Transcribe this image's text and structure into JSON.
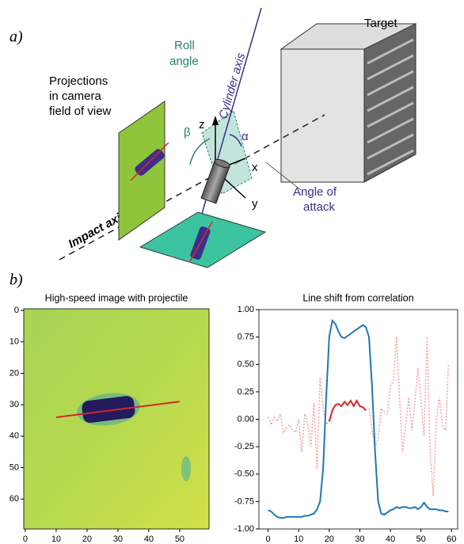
{
  "panels": {
    "a": "a)",
    "b": "b)"
  },
  "diagram": {
    "target": "Target",
    "roll_angle": [
      "Roll",
      "angle"
    ],
    "cylinder_axis": "Cylinder axis",
    "projections": [
      "Projections",
      "in camera",
      "field of view"
    ],
    "z": "z",
    "x": "x",
    "y": "y",
    "beta": "β",
    "alpha": "α",
    "angle_of_attack": [
      "Angle of",
      "attack"
    ],
    "impact_axis": "Impact axis"
  },
  "chart_data": [
    {
      "type": "image",
      "title": "High-speed image with projectile",
      "xlim": [
        -0.5,
        59.5
      ],
      "ylim": [
        69.5,
        -0.5
      ],
      "xticks": [
        0,
        10,
        20,
        30,
        40,
        50
      ],
      "yticks": [
        0,
        10,
        20,
        30,
        40,
        50,
        60
      ],
      "series": [
        {
          "color": "#d62728",
          "style": "solid",
          "x": [
            10,
            50
          ],
          "values": [
            34,
            29
          ]
        }
      ]
    },
    {
      "type": "line",
      "title": "Line shift from correlation",
      "xlim": [
        -3,
        62
      ],
      "ylim": [
        -1.0,
        1.0
      ],
      "xticks": [
        0,
        10,
        20,
        30,
        40,
        50,
        60
      ],
      "yticks": [
        {
          "value": -1,
          "label": "-1.00"
        },
        {
          "value": -0.75,
          "label": "-0.75"
        },
        {
          "value": -0.5,
          "label": "-0.50"
        },
        {
          "value": -0.25,
          "label": "-0.25"
        },
        {
          "value": 0,
          "label": "0.00"
        },
        {
          "value": 0.25,
          "label": "0.25"
        },
        {
          "value": 0.5,
          "label": "0.50"
        },
        {
          "value": 0.75,
          "label": "0.75"
        },
        {
          "value": 1,
          "label": "1.00"
        }
      ],
      "x": [
        0,
        1,
        2,
        3,
        4,
        5,
        6,
        7,
        8,
        9,
        10,
        11,
        12,
        13,
        14,
        15,
        16,
        17,
        18,
        19,
        20,
        21,
        22,
        23,
        24,
        25,
        26,
        27,
        28,
        29,
        30,
        31,
        32,
        33,
        34,
        35,
        36,
        37,
        38,
        39,
        40,
        41,
        42,
        43,
        44,
        45,
        46,
        47,
        48,
        49,
        50,
        51,
        52,
        53,
        54,
        55,
        56,
        57,
        58,
        59
      ],
      "series": [
        {
          "color": "#f4a0a0",
          "style": "dotted",
          "values": [
            0.02,
            -0.05,
            0.02,
            -0.02,
            0.05,
            -0.12,
            -0.08,
            -0.05,
            -0.1,
            -0.12,
            0.0,
            -0.3,
            0.05,
            -0.05,
            -0.25,
            0.15,
            -0.45,
            0.38,
            0.1,
            -0.05,
            0.0,
            null,
            null,
            null,
            null,
            null,
            null,
            null,
            null,
            null,
            null,
            null,
            null,
            0.1,
            -0.1,
            -0.25,
            -0.18,
            0.1,
            0.06,
            0.05,
            0.3,
            0.35,
            0.75,
            0.2,
            -0.3,
            -0.05,
            0.2,
            -0.1,
            0.15,
            0.47,
            0.18,
            -0.15,
            0.75,
            -0.3,
            -0.7,
            0.0,
            0.2,
            -0.05,
            -0.1,
            0.5
          ]
        },
        {
          "color": "#1f77b4",
          "style": "solid",
          "values": [
            -0.83,
            -0.84,
            -0.87,
            -0.89,
            -0.9,
            -0.9,
            -0.89,
            -0.89,
            -0.89,
            -0.89,
            -0.89,
            -0.89,
            -0.88,
            -0.88,
            -0.87,
            -0.86,
            -0.82,
            -0.75,
            -0.45,
            0.2,
            0.75,
            0.9,
            0.87,
            0.8,
            0.75,
            0.74,
            0.76,
            0.78,
            0.8,
            0.82,
            0.84,
            0.86,
            0.84,
            0.75,
            0.3,
            -0.3,
            -0.75,
            -0.86,
            -0.87,
            -0.85,
            -0.83,
            -0.82,
            -0.8,
            -0.81,
            -0.8,
            -0.8,
            -0.81,
            -0.81,
            -0.8,
            -0.82,
            -0.8,
            -0.76,
            -0.8,
            -0.82,
            -0.82,
            -0.82,
            -0.83,
            -0.83,
            -0.84,
            -0.84
          ]
        },
        {
          "color": "#d62728",
          "style": "solid",
          "values": [
            null,
            null,
            null,
            null,
            null,
            null,
            null,
            null,
            null,
            null,
            null,
            null,
            null,
            null,
            null,
            null,
            null,
            null,
            null,
            null,
            -0.02,
            0.08,
            0.13,
            0.14,
            0.12,
            0.16,
            0.13,
            0.17,
            0.12,
            0.17,
            0.12,
            0.11,
            0.08,
            null,
            null,
            null,
            null,
            null,
            null,
            null,
            null,
            null,
            null,
            null,
            null,
            null,
            null,
            null,
            null,
            null,
            null,
            null,
            null,
            null,
            null,
            null,
            null,
            null,
            null,
            null
          ]
        }
      ]
    }
  ]
}
